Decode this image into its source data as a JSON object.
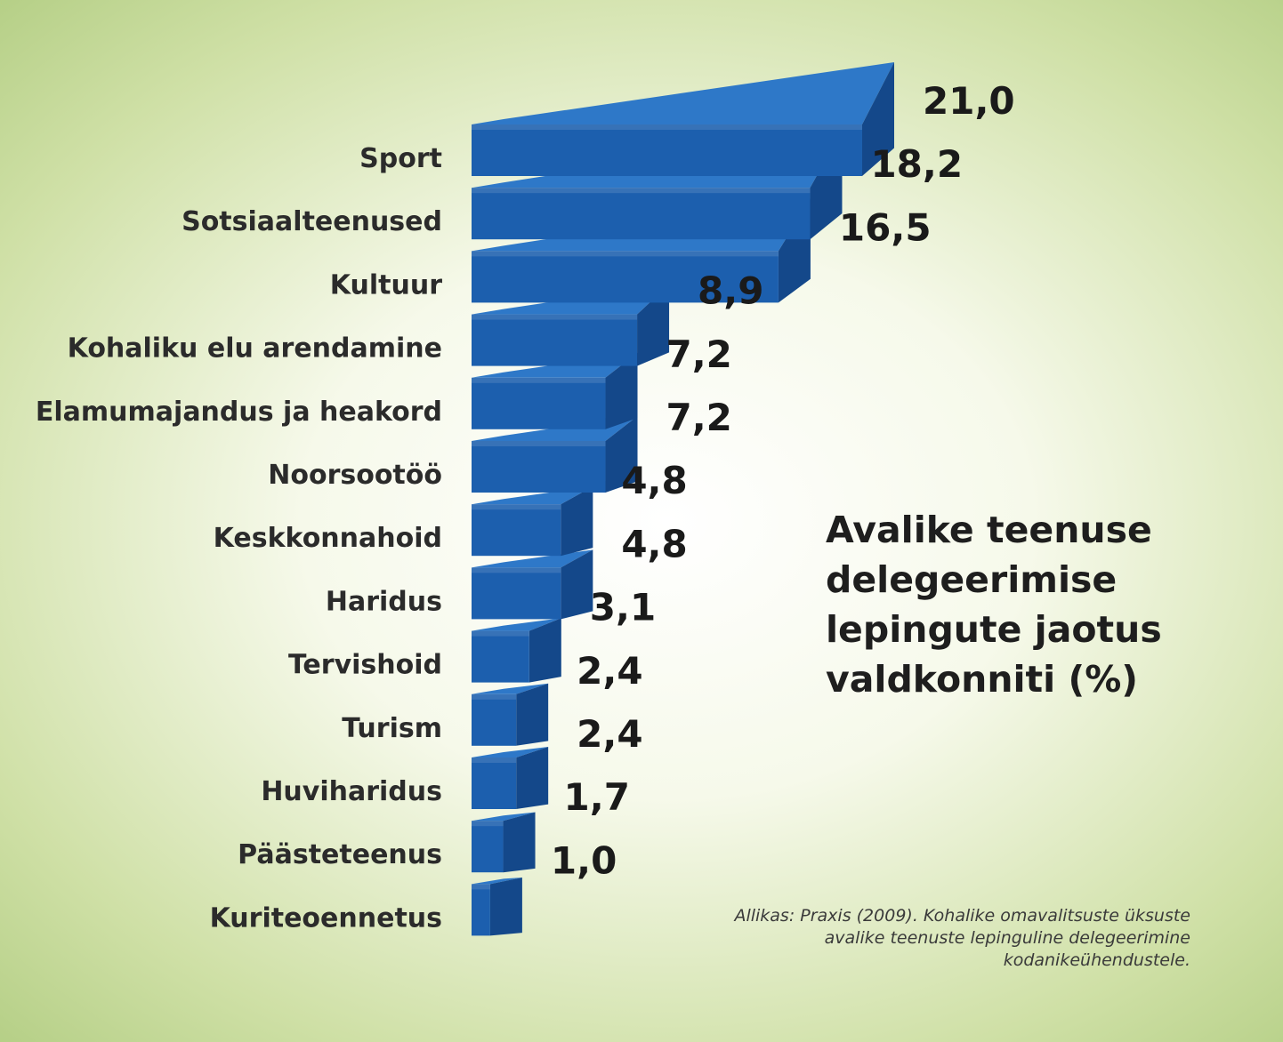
{
  "chart_data": {
    "type": "bar",
    "orientation": "horizontal",
    "title_lines": [
      "Avalike teenuse",
      "delegeerimise",
      "lepingute jaotus",
      "valdkonniti (%)"
    ],
    "categories": [
      "Sport",
      "Sotsiaalteenused",
      "Kultuur",
      "Kohaliku elu arendamine",
      "Elamumajandus ja heakord",
      "Noorsootöö",
      "Keskkonnahoid",
      "Haridus",
      "Tervishoid",
      "Turism",
      "Huviharidus",
      "Päästeteenus",
      "Kuriteoennetus"
    ],
    "values": [
      21.0,
      18.2,
      16.5,
      8.9,
      7.2,
      7.2,
      4.8,
      4.8,
      3.1,
      2.4,
      2.4,
      1.7,
      1.0
    ],
    "value_labels": [
      "21,0",
      "18,2",
      "16,5",
      "8,9",
      "7,2",
      "7,2",
      "4,8",
      "4,8",
      "3,1",
      "2,4",
      "2,4",
      "1,7",
      "1,0"
    ],
    "bar_color": "#1c5fae",
    "bar_top_color": "#2e78c8",
    "bar_side_color": "#14488a",
    "source_lines": [
      "Allikas: Praxis (2009). Kohalike omavalitsuste üksuste",
      "avalike teenuste lepinguline delegeerimine",
      "kodanikeühendustele."
    ]
  }
}
